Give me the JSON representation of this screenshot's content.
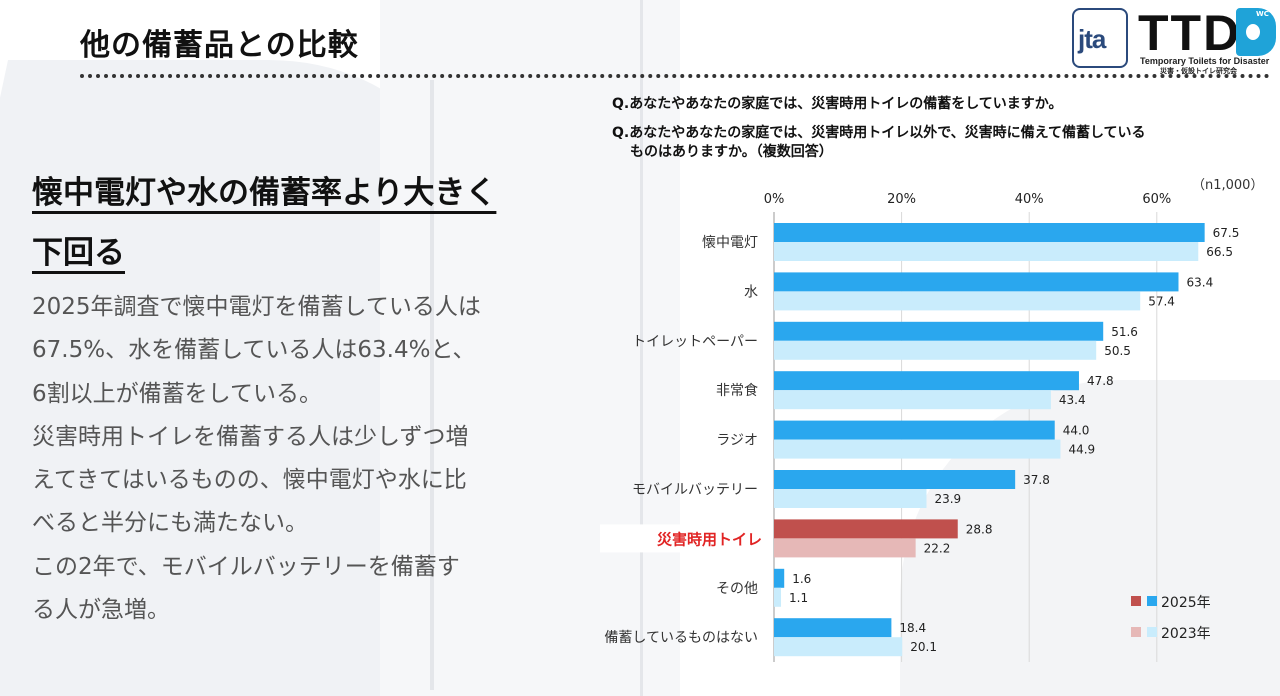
{
  "page": {
    "title": "他の備蓄品との比較",
    "headline_lines": [
      "懐中電灯や水の備蓄率より大きく",
      "下回る"
    ],
    "body_lines": [
      "2025年調査で懐中電灯を備蓄している人は",
      "67.5%、水を備蓄している人は63.4%と、",
      "6割以上が備蓄をしている。",
      "災害時用トイレを備蓄する人は少しずつ増",
      "えてきてはいるものの、懐中電灯や水に比",
      "べると半分にも満たない。",
      "この2年で、モバイルバッテリーを備蓄す",
      "る人が急増。"
    ]
  },
  "logos": {
    "jta": "jta",
    "ttd": "TTD",
    "ttd_wc": "WC",
    "ttd_en": "Temporary Toilets for Disaster",
    "ttd_jp": "災害・仮設トイレ研究会"
  },
  "questions": {
    "q1": "Q.あなたやあなたの家庭では、災害時用トイレの備蓄をしていますか。",
    "q2_line1": "Q.あなたやあなたの家庭では、災害時用トイレ以外で、災害時に備えて備蓄している",
    "q2_line2": "ものはありますか。（複数回答）",
    "n_note": "（n1,000）"
  },
  "chart_data": {
    "type": "bar",
    "orientation": "horizontal",
    "categories": [
      "懐中電灯",
      "水",
      "トイレットペーパー",
      "非常食",
      "ラジオ",
      "モバイルバッテリー",
      "災害時用トイレ",
      "その他",
      "備蓄しているものはない"
    ],
    "highlight_category": "災害時用トイレ",
    "series": [
      {
        "name": "2025年",
        "values": [
          67.5,
          63.4,
          51.6,
          47.8,
          44.0,
          37.8,
          28.8,
          1.6,
          18.4
        ],
        "color": "#2aa7ee",
        "highlight_color": "#c0504d"
      },
      {
        "name": "2023年",
        "values": [
          66.5,
          57.4,
          50.5,
          43.4,
          44.9,
          23.9,
          22.2,
          1.1,
          20.1
        ],
        "color": "#c9ecfc",
        "highlight_color": "#e6b8b7"
      }
    ],
    "xaxis_ticks": [
      "0%",
      "20%",
      "40%",
      "60%"
    ],
    "xlim": [
      0,
      70
    ],
    "grid": true,
    "legend_position": "bottom-right"
  }
}
